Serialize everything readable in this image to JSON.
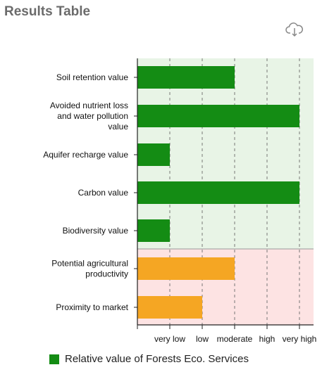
{
  "header": {
    "title": "Results Table",
    "download_icon": "cloud-download-icon"
  },
  "legend": {
    "label": "Relative value of Forests Eco. Services",
    "color": "#148c14"
  },
  "colors": {
    "eco_bar": "#148c14",
    "agri_bar": "#f5a623",
    "eco_background": "#e8f4e6",
    "agri_background": "#fde3e3"
  },
  "chart_data": {
    "type": "bar",
    "orientation": "horizontal",
    "categories": [
      "Soil retention value",
      "Avoided nutrient loss and water pollution value",
      "Aquifer recharge value",
      "Carbon value",
      "Biodiversity value",
      "Potential agricultural productivity",
      "Proximity to market"
    ],
    "category_lines": [
      [
        "Soil retention value"
      ],
      [
        "Avoided nutrient loss",
        "and water pollution",
        "value"
      ],
      [
        "Aquifer recharge value"
      ],
      [
        "Carbon value"
      ],
      [
        "Biodiversity value"
      ],
      [
        "Potential agricultural",
        "productivity"
      ],
      [
        "Proximity to market"
      ]
    ],
    "values": [
      3,
      5,
      1,
      5,
      1,
      3,
      2
    ],
    "groups": [
      "eco",
      "eco",
      "eco",
      "eco",
      "eco",
      "agri",
      "agri"
    ],
    "x_ticks": [
      "very low",
      "low",
      "moderate",
      "high",
      "very high"
    ],
    "xlim": [
      0,
      5
    ],
    "grid": "vertical dashed",
    "legend_position": "bottom"
  }
}
